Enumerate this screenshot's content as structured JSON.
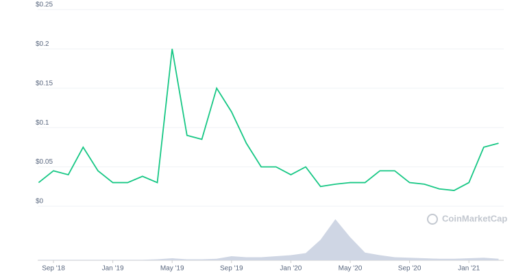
{
  "chart_data": {
    "type": "line",
    "watermark": "CoinMarketCap",
    "x": [
      "2018-08",
      "2018-09",
      "2018-10",
      "2018-11",
      "2018-12",
      "2019-01",
      "2019-02",
      "2019-03",
      "2019-04",
      "2019-05",
      "2019-06",
      "2019-07",
      "2019-08",
      "2019-09",
      "2019-10",
      "2019-11",
      "2019-12",
      "2020-01",
      "2020-02",
      "2020-03",
      "2020-04",
      "2020-05",
      "2020-06",
      "2020-07",
      "2020-08",
      "2020-09",
      "2020-10",
      "2020-11",
      "2020-12",
      "2021-01",
      "2021-02",
      "2021-03"
    ],
    "series": [
      {
        "name": "Price",
        "color": "#16c784",
        "values": [
          0.03,
          0.045,
          0.04,
          0.075,
          0.045,
          0.03,
          0.03,
          0.038,
          0.03,
          0.2,
          0.09,
          0.085,
          0.15,
          0.12,
          0.08,
          0.05,
          0.05,
          0.04,
          0.05,
          0.025,
          0.028,
          0.03,
          0.03,
          0.045,
          0.045,
          0.03,
          0.028,
          0.022,
          0.02,
          0.03,
          0.075,
          0.08
        ]
      },
      {
        "name": "Volume",
        "color": "#cfd6e4",
        "axis": "y2",
        "values": [
          1,
          1,
          1,
          1,
          1,
          1,
          1,
          1,
          2,
          4,
          2,
          2,
          3,
          8,
          6,
          6,
          8,
          10,
          14,
          40,
          80,
          45,
          15,
          10,
          6,
          5,
          4,
          3,
          3,
          4,
          5,
          3
        ]
      }
    ],
    "ylim": [
      0,
      0.25
    ],
    "yticks": [
      {
        "value": 0,
        "label": "$0"
      },
      {
        "value": 0.05,
        "label": "$0.05"
      },
      {
        "value": 0.1,
        "label": "$0.1"
      },
      {
        "value": 0.15,
        "label": "$0.15"
      },
      {
        "value": 0.2,
        "label": "$0.2"
      },
      {
        "value": 0.25,
        "label": "$0.25"
      }
    ],
    "y2lim": [
      0,
      100
    ],
    "xticks": [
      {
        "value": "2018-09",
        "label": "Sep '18"
      },
      {
        "value": "2019-01",
        "label": "Jan '19"
      },
      {
        "value": "2019-05",
        "label": "May '19"
      },
      {
        "value": "2019-09",
        "label": "Sep '19"
      },
      {
        "value": "2020-01",
        "label": "Jan '20"
      },
      {
        "value": "2020-05",
        "label": "May '20"
      },
      {
        "value": "2020-09",
        "label": "Sep '20"
      },
      {
        "value": "2021-01",
        "label": "Jan '21"
      }
    ],
    "grid": true
  }
}
